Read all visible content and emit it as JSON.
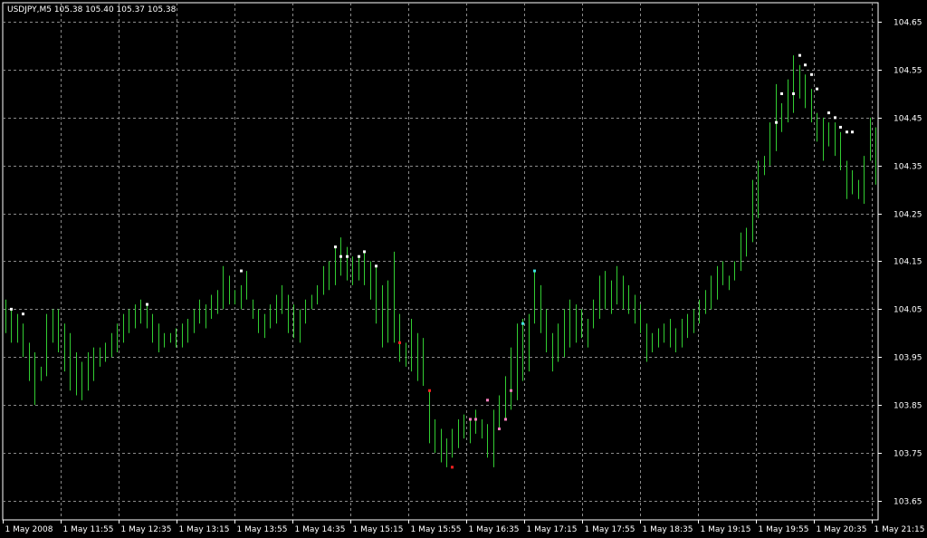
{
  "chart_data": {
    "type": "bar",
    "chart_style": "ohlc",
    "symbol_header": "USDJPY,M5  105.38 105.40 105.37 105.38",
    "symbol": "USDJPY,M5",
    "last_open": 105.38,
    "last_high": 105.4,
    "last_low": 105.37,
    "last_close": 105.38,
    "y_ticks": [
      "104.65",
      "104.55",
      "104.45",
      "104.35",
      "104.25",
      "104.15",
      "104.05",
      "103.95",
      "103.85",
      "103.75",
      "103.65"
    ],
    "x_ticks": [
      "1 May 2008",
      "1 May 11:55",
      "1 May 12:35",
      "1 May 13:15",
      "1 May 13:55",
      "1 May 14:35",
      "1 May 15:15",
      "1 May 15:55",
      "1 May 16:35",
      "1 May 17:15",
      "1 May 17:55",
      "1 May 18:35",
      "1 May 19:15",
      "1 May 19:55",
      "1 May 20:35",
      "1 May 21:15"
    ],
    "ylim": [
      103.61,
      104.69
    ],
    "grid": true,
    "colors": {
      "background": "#000000",
      "grid": "#8a8a8a",
      "bar": "#32cd32",
      "axis_text": "#ffffff",
      "marker_white": "#ffffff",
      "marker_red": "#ff2020",
      "marker_pink": "#ff80c0",
      "marker_cyan": "#40e0e0"
    },
    "bars": [
      {
        "h": 104.07,
        "l": 104.0
      },
      {
        "h": 104.05,
        "l": 103.98
      },
      {
        "h": 104.04,
        "l": 103.98
      },
      {
        "h": 104.02,
        "l": 103.95
      },
      {
        "h": 103.98,
        "l": 103.9
      },
      {
        "h": 103.96,
        "l": 103.85
      },
      {
        "h": 103.93,
        "l": 103.9
      },
      {
        "h": 104.04,
        "l": 103.91
      },
      {
        "h": 104.05,
        "l": 103.98
      },
      {
        "h": 104.05,
        "l": 103.96
      },
      {
        "h": 104.02,
        "l": 103.92
      },
      {
        "h": 104.0,
        "l": 103.88
      },
      {
        "h": 103.96,
        "l": 103.87
      },
      {
        "h": 103.94,
        "l": 103.86
      },
      {
        "h": 103.96,
        "l": 103.88
      },
      {
        "h": 103.97,
        "l": 103.9
      },
      {
        "h": 103.97,
        "l": 103.93
      },
      {
        "h": 103.98,
        "l": 103.94
      },
      {
        "h": 104.0,
        "l": 103.95
      },
      {
        "h": 104.02,
        "l": 103.96
      },
      {
        "h": 104.04,
        "l": 103.98
      },
      {
        "h": 104.05,
        "l": 104.0
      },
      {
        "h": 104.06,
        "l": 104.01
      },
      {
        "h": 104.07,
        "l": 104.02
      },
      {
        "h": 104.06,
        "l": 104.01
      },
      {
        "h": 104.04,
        "l": 103.98
      },
      {
        "h": 104.02,
        "l": 103.96
      },
      {
        "h": 104.0,
        "l": 103.97
      },
      {
        "h": 104.0,
        "l": 103.98
      },
      {
        "h": 104.01,
        "l": 103.97
      },
      {
        "h": 104.02,
        "l": 103.97
      },
      {
        "h": 104.03,
        "l": 103.98
      },
      {
        "h": 104.05,
        "l": 104.0
      },
      {
        "h": 104.07,
        "l": 104.02
      },
      {
        "h": 104.06,
        "l": 104.01
      },
      {
        "h": 104.08,
        "l": 104.03
      },
      {
        "h": 104.09,
        "l": 104.04
      },
      {
        "h": 104.14,
        "l": 104.05
      },
      {
        "h": 104.12,
        "l": 104.06
      },
      {
        "h": 104.09,
        "l": 104.06
      },
      {
        "h": 104.1,
        "l": 104.05
      },
      {
        "h": 104.13,
        "l": 104.07
      },
      {
        "h": 104.07,
        "l": 104.03
      },
      {
        "h": 104.05,
        "l": 104.0
      },
      {
        "h": 104.04,
        "l": 103.99
      },
      {
        "h": 104.06,
        "l": 104.01
      },
      {
        "h": 104.08,
        "l": 104.02
      },
      {
        "h": 104.1,
        "l": 104.04
      },
      {
        "h": 104.08,
        "l": 104.0
      },
      {
        "h": 104.06,
        "l": 103.99
      },
      {
        "h": 104.05,
        "l": 103.98
      },
      {
        "h": 104.07,
        "l": 104.02
      },
      {
        "h": 104.08,
        "l": 104.05
      },
      {
        "h": 104.1,
        "l": 104.06
      },
      {
        "h": 104.14,
        "l": 104.08
      },
      {
        "h": 104.15,
        "l": 104.09
      },
      {
        "h": 104.18,
        "l": 104.1
      },
      {
        "h": 104.2,
        "l": 104.12
      },
      {
        "h": 104.18,
        "l": 104.11
      },
      {
        "h": 104.16,
        "l": 104.1
      },
      {
        "h": 104.16,
        "l": 104.11
      },
      {
        "h": 104.17,
        "l": 104.1
      },
      {
        "h": 104.15,
        "l": 104.07
      },
      {
        "h": 104.14,
        "l": 104.02
      },
      {
        "h": 104.1,
        "l": 103.97
      },
      {
        "h": 104.11,
        "l": 103.98
      },
      {
        "h": 104.17,
        "l": 103.98
      },
      {
        "h": 104.04,
        "l": 103.94
      },
      {
        "h": 103.98,
        "l": 103.93
      },
      {
        "h": 104.03,
        "l": 103.92
      },
      {
        "h": 104.0,
        "l": 103.9
      },
      {
        "h": 103.99,
        "l": 103.89
      },
      {
        "h": 103.88,
        "l": 103.77
      },
      {
        "h": 103.82,
        "l": 103.75
      },
      {
        "h": 103.8,
        "l": 103.73
      },
      {
        "h": 103.78,
        "l": 103.72
      },
      {
        "h": 103.8,
        "l": 103.74
      },
      {
        "h": 103.82,
        "l": 103.76
      },
      {
        "h": 103.83,
        "l": 103.78
      },
      {
        "h": 103.82,
        "l": 103.77
      },
      {
        "h": 103.84,
        "l": 103.79
      },
      {
        "h": 103.82,
        "l": 103.78
      },
      {
        "h": 103.81,
        "l": 103.74
      },
      {
        "h": 103.84,
        "l": 103.72
      },
      {
        "h": 103.87,
        "l": 103.8
      },
      {
        "h": 103.91,
        "l": 103.82
      },
      {
        "h": 103.97,
        "l": 103.84
      },
      {
        "h": 104.02,
        "l": 103.86
      },
      {
        "h": 104.03,
        "l": 103.9
      },
      {
        "h": 104.04,
        "l": 103.92
      },
      {
        "h": 104.13,
        "l": 104.02
      },
      {
        "h": 104.1,
        "l": 104.0
      },
      {
        "h": 104.05,
        "l": 103.96
      },
      {
        "h": 104.0,
        "l": 103.92
      },
      {
        "h": 104.02,
        "l": 103.94
      },
      {
        "h": 104.05,
        "l": 103.95
      },
      {
        "h": 104.07,
        "l": 103.97
      },
      {
        "h": 104.06,
        "l": 103.98
      },
      {
        "h": 104.05,
        "l": 103.99
      },
      {
        "h": 104.03,
        "l": 103.97
      },
      {
        "h": 104.07,
        "l": 104.01
      },
      {
        "h": 104.12,
        "l": 104.03
      },
      {
        "h": 104.13,
        "l": 104.05
      },
      {
        "h": 104.11,
        "l": 104.04
      },
      {
        "h": 104.14,
        "l": 104.06
      },
      {
        "h": 104.12,
        "l": 104.05
      },
      {
        "h": 104.1,
        "l": 104.04
      },
      {
        "h": 104.08,
        "l": 104.02
      },
      {
        "h": 104.06,
        "l": 104.0
      },
      {
        "h": 104.02,
        "l": 103.94
      },
      {
        "h": 104.0,
        "l": 103.96
      },
      {
        "h": 104.01,
        "l": 103.97
      },
      {
        "h": 104.02,
        "l": 103.98
      },
      {
        "h": 104.03,
        "l": 103.97
      },
      {
        "h": 104.01,
        "l": 103.96
      },
      {
        "h": 104.03,
        "l": 103.97
      },
      {
        "h": 104.04,
        "l": 103.99
      },
      {
        "h": 104.05,
        "l": 104.0
      },
      {
        "h": 104.07,
        "l": 104.02
      },
      {
        "h": 104.09,
        "l": 104.04
      },
      {
        "h": 104.12,
        "l": 104.05
      },
      {
        "h": 104.14,
        "l": 104.07
      },
      {
        "h": 104.15,
        "l": 104.1
      },
      {
        "h": 104.12,
        "l": 104.09
      },
      {
        "h": 104.15,
        "l": 104.11
      },
      {
        "h": 104.21,
        "l": 104.13
      },
      {
        "h": 104.22,
        "l": 104.16
      },
      {
        "h": 104.32,
        "l": 104.19
      },
      {
        "h": 104.36,
        "l": 104.24
      },
      {
        "h": 104.37,
        "l": 104.33
      },
      {
        "h": 104.44,
        "l": 104.35
      },
      {
        "h": 104.52,
        "l": 104.38
      },
      {
        "h": 104.48,
        "l": 104.42
      },
      {
        "h": 104.53,
        "l": 104.44
      },
      {
        "h": 104.58,
        "l": 104.46
      },
      {
        "h": 104.56,
        "l": 104.49
      },
      {
        "h": 104.54,
        "l": 104.47
      },
      {
        "h": 104.51,
        "l": 104.44
      },
      {
        "h": 104.46,
        "l": 104.4
      },
      {
        "h": 104.45,
        "l": 104.36
      },
      {
        "h": 104.44,
        "l": 104.39
      },
      {
        "h": 104.44,
        "l": 104.37
      },
      {
        "h": 104.42,
        "l": 104.34
      },
      {
        "h": 104.36,
        "l": 104.28
      },
      {
        "h": 104.34,
        "l": 104.29
      },
      {
        "h": 104.32,
        "l": 104.28
      },
      {
        "h": 104.37,
        "l": 104.27
      },
      {
        "h": 104.45,
        "l": 104.36
      },
      {
        "h": 104.43,
        "l": 104.31
      }
    ],
    "markers": [
      {
        "i": 1,
        "y": 104.05,
        "c": "white"
      },
      {
        "i": 3,
        "y": 104.04,
        "c": "white"
      },
      {
        "i": 24,
        "y": 104.06,
        "c": "white"
      },
      {
        "i": 40,
        "y": 104.13,
        "c": "white"
      },
      {
        "i": 56,
        "y": 104.18,
        "c": "white"
      },
      {
        "i": 57,
        "y": 104.16,
        "c": "white"
      },
      {
        "i": 58,
        "y": 104.16,
        "c": "white"
      },
      {
        "i": 60,
        "y": 104.16,
        "c": "white"
      },
      {
        "i": 61,
        "y": 104.17,
        "c": "white"
      },
      {
        "i": 63,
        "y": 104.14,
        "c": "white"
      },
      {
        "i": 67,
        "y": 103.98,
        "c": "red"
      },
      {
        "i": 72,
        "y": 103.88,
        "c": "red"
      },
      {
        "i": 76,
        "y": 103.72,
        "c": "red"
      },
      {
        "i": 79,
        "y": 103.82,
        "c": "pink"
      },
      {
        "i": 80,
        "y": 103.82,
        "c": "pink"
      },
      {
        "i": 82,
        "y": 103.86,
        "c": "pink"
      },
      {
        "i": 84,
        "y": 103.8,
        "c": "pink"
      },
      {
        "i": 85,
        "y": 103.82,
        "c": "pink"
      },
      {
        "i": 86,
        "y": 103.88,
        "c": "pink"
      },
      {
        "i": 88,
        "y": 104.02,
        "c": "cyan"
      },
      {
        "i": 90,
        "y": 104.13,
        "c": "cyan"
      },
      {
        "i": 131,
        "y": 104.44,
        "c": "white"
      },
      {
        "i": 132,
        "y": 104.5,
        "c": "white"
      },
      {
        "i": 134,
        "y": 104.5,
        "c": "white"
      },
      {
        "i": 135,
        "y": 104.58,
        "c": "white"
      },
      {
        "i": 136,
        "y": 104.56,
        "c": "white"
      },
      {
        "i": 137,
        "y": 104.54,
        "c": "white"
      },
      {
        "i": 138,
        "y": 104.51,
        "c": "white"
      },
      {
        "i": 140,
        "y": 104.46,
        "c": "white"
      },
      {
        "i": 141,
        "y": 104.45,
        "c": "white"
      },
      {
        "i": 142,
        "y": 104.43,
        "c": "white"
      },
      {
        "i": 143,
        "y": 104.42,
        "c": "white"
      },
      {
        "i": 144,
        "y": 104.42,
        "c": "white"
      }
    ]
  }
}
